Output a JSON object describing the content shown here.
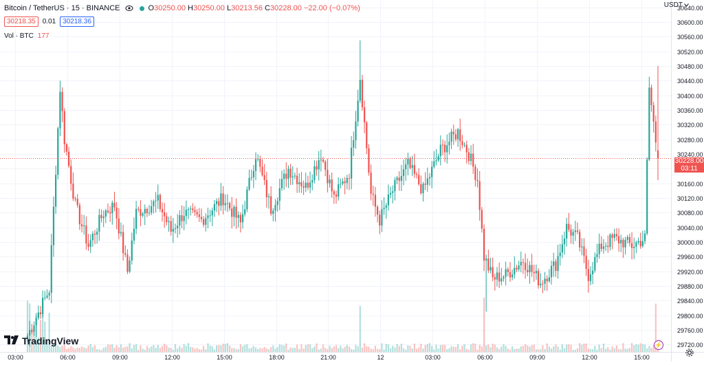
{
  "header": {
    "symbol_title": "Bitcoin / TetherUS · 15 · BINANCE",
    "ohlc": {
      "o_label": "O",
      "o_value": "30250.00",
      "h_label": "H",
      "h_value": "30250.00",
      "l_label": "L",
      "l_value": "30213.56",
      "c_label": "C",
      "c_value": "30228.00",
      "change": "−22.00 (−0.07%)"
    },
    "sell_price": "30218.35",
    "spread": "0.01",
    "buy_price": "30218.36",
    "volume_label": "Vol · BTC",
    "volume_value": "177"
  },
  "price_axis": {
    "currency": "USDT",
    "last_price": "30228.00",
    "countdown": "03:11"
  },
  "branding": {
    "logo_text": "TradingView"
  },
  "colors": {
    "up": "#26a69a",
    "down": "#ef5350",
    "grid": "#f0f3fa",
    "axis_text": "#131722",
    "last_line": "#ef5350"
  },
  "chart_data": {
    "type": "candlestick",
    "title": "Bitcoin / TetherUS · 15 · BINANCE",
    "interval": "15 minutes",
    "ylim": [
      29700,
      30660
    ],
    "y_ticks": [
      29720,
      29760,
      29800,
      29840,
      29880,
      29920,
      29960,
      30000,
      30040,
      30080,
      30120,
      30160,
      30200,
      30240,
      30280,
      30320,
      30360,
      30400,
      30440,
      30480,
      30520,
      30560,
      30600,
      30640
    ],
    "x_ticks": [
      "03:00",
      "06:00",
      "09:00",
      "12:00",
      "15:00",
      "18:00",
      "21:00",
      "12",
      "03:00",
      "06:00",
      "09:00",
      "12:00",
      "15:00"
    ],
    "anchor_closes": [
      {
        "t": 0,
        "close": 29745
      },
      {
        "t": 10,
        "close": 29870
      },
      {
        "t": 15,
        "close": 30420
      },
      {
        "t": 17,
        "close": 30280
      },
      {
        "t": 22,
        "close": 30100
      },
      {
        "t": 28,
        "close": 29990
      },
      {
        "t": 35,
        "close": 30080
      },
      {
        "t": 40,
        "close": 30100
      },
      {
        "t": 46,
        "close": 29920
      },
      {
        "t": 50,
        "close": 30080
      },
      {
        "t": 60,
        "close": 30110
      },
      {
        "t": 66,
        "close": 30030
      },
      {
        "t": 72,
        "close": 30080
      },
      {
        "t": 80,
        "close": 30060
      },
      {
        "t": 90,
        "close": 30120
      },
      {
        "t": 98,
        "close": 30050
      },
      {
        "t": 105,
        "close": 30240
      },
      {
        "t": 112,
        "close": 30090
      },
      {
        "t": 120,
        "close": 30200
      },
      {
        "t": 128,
        "close": 30150
      },
      {
        "t": 135,
        "close": 30240
      },
      {
        "t": 141,
        "close": 30120
      },
      {
        "t": 148,
        "close": 30190
      },
      {
        "t": 153,
        "close": 30450
      },
      {
        "t": 158,
        "close": 30130
      },
      {
        "t": 162,
        "close": 30060
      },
      {
        "t": 168,
        "close": 30140
      },
      {
        "t": 175,
        "close": 30210
      },
      {
        "t": 182,
        "close": 30140
      },
      {
        "t": 190,
        "close": 30250
      },
      {
        "t": 198,
        "close": 30300
      },
      {
        "t": 203,
        "close": 30240
      },
      {
        "t": 207,
        "close": 30170
      },
      {
        "t": 210,
        "close": 29960
      },
      {
        "t": 214,
        "close": 29900
      },
      {
        "t": 220,
        "close": 29910
      },
      {
        "t": 228,
        "close": 29950
      },
      {
        "t": 236,
        "close": 29890
      },
      {
        "t": 243,
        "close": 29940
      },
      {
        "t": 248,
        "close": 30040
      },
      {
        "t": 253,
        "close": 30010
      },
      {
        "t": 258,
        "close": 29910
      },
      {
        "t": 264,
        "close": 29990
      },
      {
        "t": 270,
        "close": 30010
      },
      {
        "t": 278,
        "close": 29990
      },
      {
        "t": 284,
        "close": 30010
      },
      {
        "t": 286,
        "close": 30420
      },
      {
        "t": 290,
        "close": 30228
      }
    ],
    "last": {
      "open": 30250.0,
      "high": 30250.0,
      "low": 30213.56,
      "close": 30228.0
    }
  }
}
